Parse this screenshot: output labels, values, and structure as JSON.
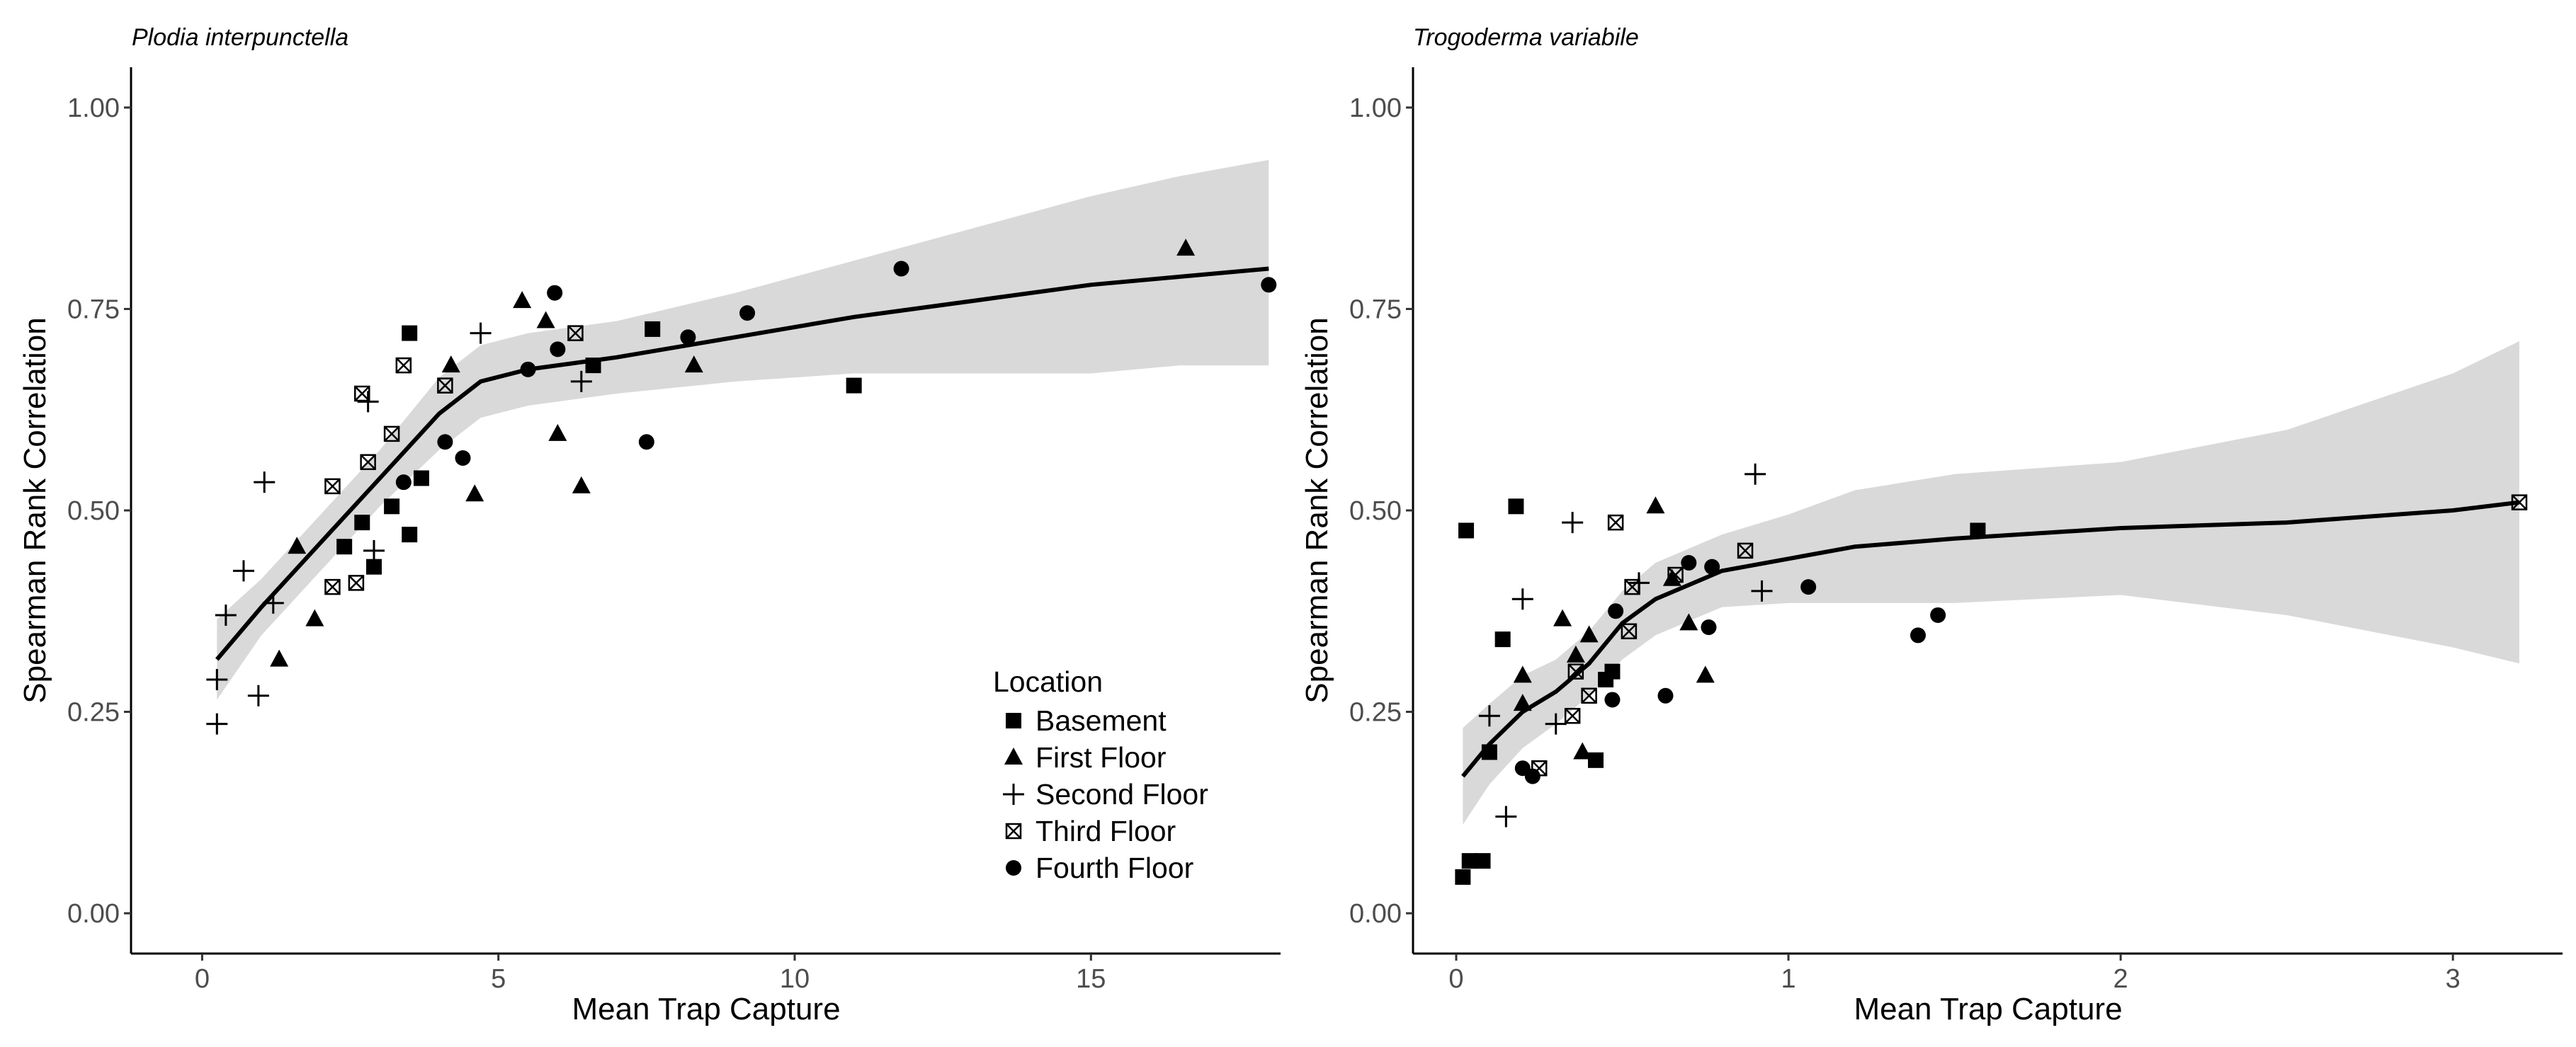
{
  "chart_data": [
    {
      "type": "scatter",
      "title": "Plodia interpunctella",
      "xlabel": "Mean Trap Capture",
      "ylabel": "Spearman Rank Correlation",
      "xlim": [
        -1.2,
        18.2
      ],
      "ylim": [
        -0.05,
        1.05
      ],
      "xticks": [
        0,
        5,
        10,
        15
      ],
      "xtick_labels": [
        "0",
        "5",
        "10",
        "15"
      ],
      "yticks": [
        0,
        0.25,
        0.5,
        0.75,
        1.0
      ],
      "ytick_labels": [
        "0.00",
        "0.25",
        "0.50",
        "0.75",
        "1.00"
      ],
      "grid": false,
      "legend": {
        "title": "Location",
        "position": "bottom-right",
        "entries": [
          {
            "label": "Basement",
            "shape": "square"
          },
          {
            "label": "First Floor",
            "shape": "triangle"
          },
          {
            "label": "Second Floor",
            "shape": "plus"
          },
          {
            "label": "Third Floor",
            "shape": "square-x"
          },
          {
            "label": "Fourth Floor",
            "shape": "circle"
          }
        ]
      },
      "series": [
        {
          "name": "Basement",
          "shape": "square",
          "points": [
            [
              3.5,
              0.72
            ],
            [
              3.7,
              0.54
            ],
            [
              3.5,
              0.47
            ],
            [
              3.2,
              0.505
            ],
            [
              2.9,
              0.43
            ],
            [
              2.7,
              0.485
            ],
            [
              2.4,
              0.455
            ],
            [
              6.6,
              0.68
            ],
            [
              7.6,
              0.725
            ],
            [
              11.0,
              0.655
            ]
          ]
        },
        {
          "name": "First Floor",
          "shape": "triangle",
          "points": [
            [
              1.3,
              0.315
            ],
            [
              1.9,
              0.365
            ],
            [
              1.6,
              0.455
            ],
            [
              4.2,
              0.68
            ],
            [
              4.6,
              0.52
            ],
            [
              5.4,
              0.76
            ],
            [
              5.8,
              0.735
            ],
            [
              6.0,
              0.595
            ],
            [
              6.4,
              0.53
            ],
            [
              8.3,
              0.68
            ],
            [
              16.6,
              0.825
            ]
          ]
        },
        {
          "name": "Second Floor",
          "shape": "plus",
          "points": [
            [
              0.25,
              0.235
            ],
            [
              0.25,
              0.29
            ],
            [
              0.4,
              0.37
            ],
            [
              0.7,
              0.425
            ],
            [
              1.05,
              0.535
            ],
            [
              1.2,
              0.385
            ],
            [
              0.95,
              0.27
            ],
            [
              2.8,
              0.635
            ],
            [
              2.9,
              0.45
            ],
            [
              4.7,
              0.72
            ],
            [
              6.4,
              0.66
            ]
          ]
        },
        {
          "name": "Third Floor",
          "shape": "square-x",
          "points": [
            [
              2.2,
              0.53
            ],
            [
              2.2,
              0.405
            ],
            [
              2.6,
              0.41
            ],
            [
              2.8,
              0.56
            ],
            [
              2.7,
              0.645
            ],
            [
              3.2,
              0.595
            ],
            [
              3.4,
              0.68
            ],
            [
              4.1,
              0.655
            ],
            [
              6.3,
              0.72
            ]
          ]
        },
        {
          "name": "Fourth Floor",
          "shape": "circle",
          "points": [
            [
              3.4,
              0.535
            ],
            [
              4.1,
              0.585
            ],
            [
              4.4,
              0.565
            ],
            [
              5.5,
              0.675
            ],
            [
              6.0,
              0.7
            ],
            [
              5.95,
              0.77
            ],
            [
              7.5,
              0.585
            ],
            [
              8.2,
              0.715
            ],
            [
              9.2,
              0.745
            ],
            [
              11.8,
              0.8
            ],
            [
              18.0,
              0.78
            ]
          ]
        }
      ],
      "smooth": {
        "x": [
          0.25,
          1,
          2,
          3,
          4,
          4.7,
          5.5,
          7,
          9,
          11,
          13,
          15,
          16.5,
          18
        ],
        "y": [
          0.315,
          0.38,
          0.46,
          0.54,
          0.62,
          0.66,
          0.675,
          0.69,
          0.715,
          0.74,
          0.76,
          0.78,
          0.79,
          0.8
        ],
        "lower": [
          0.265,
          0.345,
          0.425,
          0.505,
          0.575,
          0.615,
          0.63,
          0.645,
          0.66,
          0.67,
          0.67,
          0.67,
          0.68,
          0.68
        ],
        "upper": [
          0.365,
          0.415,
          0.495,
          0.575,
          0.665,
          0.705,
          0.72,
          0.735,
          0.77,
          0.81,
          0.85,
          0.89,
          0.915,
          0.935
        ]
      }
    },
    {
      "type": "scatter",
      "title": "Trogoderma variabile",
      "xlabel": "Mean Trap Capture",
      "ylabel": "Spearman Rank Correlation",
      "xlim": [
        -0.13,
        3.33
      ],
      "ylim": [
        -0.05,
        1.05
      ],
      "xticks": [
        0,
        1,
        2,
        3
      ],
      "xtick_labels": [
        "0",
        "1",
        "2",
        "3"
      ],
      "yticks": [
        0,
        0.25,
        0.5,
        0.75,
        1.0
      ],
      "ytick_labels": [
        "0.00",
        "0.25",
        "0.50",
        "0.75",
        "1.00"
      ],
      "grid": false,
      "series": [
        {
          "name": "Basement",
          "shape": "square",
          "points": [
            [
              0.02,
              0.045
            ],
            [
              0.04,
              0.065
            ],
            [
              0.08,
              0.065
            ],
            [
              0.03,
              0.475
            ],
            [
              0.1,
              0.2
            ],
            [
              0.14,
              0.34
            ],
            [
              0.18,
              0.505
            ],
            [
              0.42,
              0.19
            ],
            [
              0.45,
              0.29
            ],
            [
              0.47,
              0.3
            ],
            [
              1.57,
              0.475
            ]
          ]
        },
        {
          "name": "First Floor",
          "shape": "triangle",
          "points": [
            [
              0.2,
              0.26
            ],
            [
              0.2,
              0.295
            ],
            [
              0.32,
              0.365
            ],
            [
              0.36,
              0.32
            ],
            [
              0.38,
              0.2
            ],
            [
              0.4,
              0.345
            ],
            [
              0.6,
              0.505
            ],
            [
              0.65,
              0.415
            ],
            [
              0.7,
              0.36
            ],
            [
              0.75,
              0.295
            ]
          ]
        },
        {
          "name": "Second Floor",
          "shape": "plus",
          "points": [
            [
              0.1,
              0.245
            ],
            [
              0.15,
              0.12
            ],
            [
              0.2,
              0.39
            ],
            [
              0.35,
              0.485
            ],
            [
              0.3,
              0.235
            ],
            [
              0.55,
              0.41
            ],
            [
              0.9,
              0.545
            ],
            [
              0.92,
              0.4
            ]
          ]
        },
        {
          "name": "Third Floor",
          "shape": "square-x",
          "points": [
            [
              0.25,
              0.18
            ],
            [
              0.35,
              0.245
            ],
            [
              0.36,
              0.3
            ],
            [
              0.4,
              0.27
            ],
            [
              0.48,
              0.485
            ],
            [
              0.52,
              0.35
            ],
            [
              0.53,
              0.405
            ],
            [
              0.66,
              0.42
            ],
            [
              0.87,
              0.45
            ],
            [
              3.2,
              0.51
            ]
          ]
        },
        {
          "name": "Fourth Floor",
          "shape": "circle",
          "points": [
            [
              0.2,
              0.18
            ],
            [
              0.23,
              0.17
            ],
            [
              0.47,
              0.265
            ],
            [
              0.48,
              0.375
            ],
            [
              0.63,
              0.27
            ],
            [
              0.7,
              0.435
            ],
            [
              0.76,
              0.355
            ],
            [
              0.77,
              0.43
            ],
            [
              1.06,
              0.405
            ],
            [
              1.39,
              0.345
            ],
            [
              1.45,
              0.37
            ]
          ]
        }
      ],
      "smooth": {
        "x": [
          0.02,
          0.1,
          0.2,
          0.3,
          0.4,
          0.5,
          0.6,
          0.8,
          1.0,
          1.2,
          1.5,
          2.0,
          2.5,
          3.0,
          3.2
        ],
        "y": [
          0.17,
          0.21,
          0.25,
          0.275,
          0.31,
          0.36,
          0.39,
          0.425,
          0.44,
          0.455,
          0.465,
          0.478,
          0.485,
          0.5,
          0.51
        ],
        "lower": [
          0.11,
          0.16,
          0.205,
          0.235,
          0.27,
          0.315,
          0.345,
          0.38,
          0.385,
          0.385,
          0.385,
          0.395,
          0.37,
          0.33,
          0.31
        ],
        "upper": [
          0.23,
          0.26,
          0.295,
          0.315,
          0.35,
          0.4,
          0.435,
          0.47,
          0.495,
          0.525,
          0.545,
          0.56,
          0.6,
          0.67,
          0.71
        ]
      }
    }
  ]
}
